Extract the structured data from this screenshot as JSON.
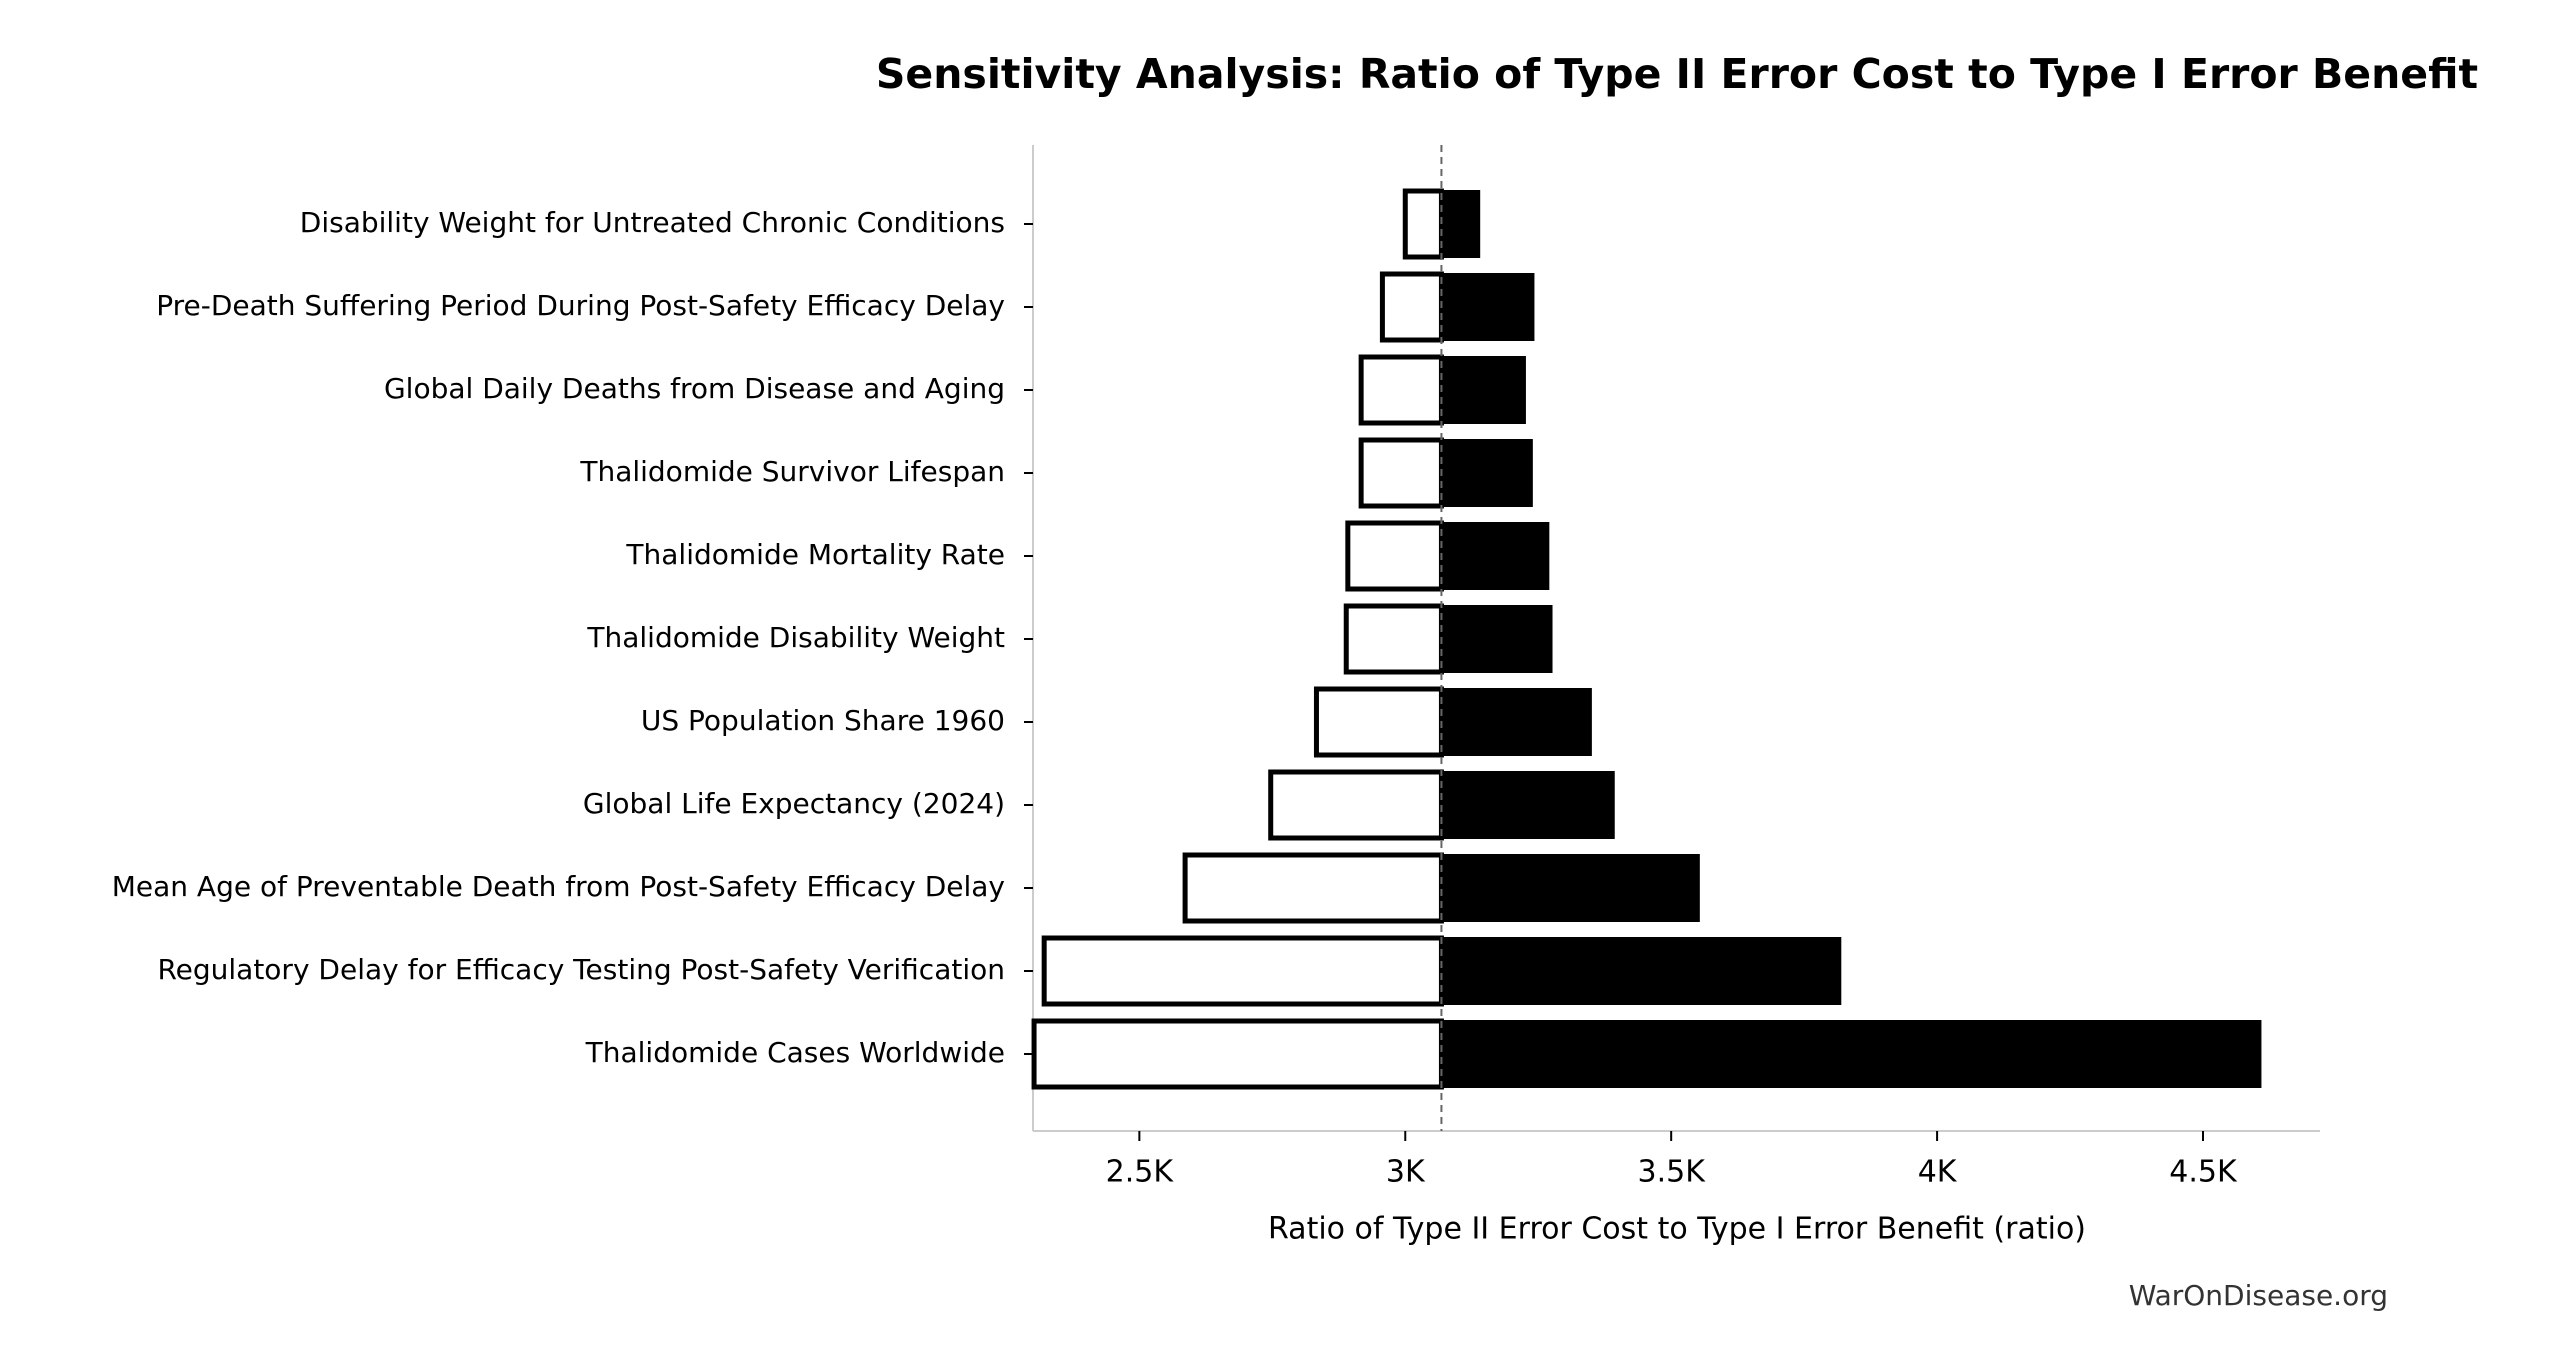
{
  "chart_data": {
    "type": "tornado",
    "title": "Sensitivity Analysis: Ratio of Type II Error Cost to Type I Error Benefit",
    "xlabel": "Ratio of Type II Error Cost to Type I Error Benefit (ratio)",
    "source": "WarOnDisease.org",
    "categories": [
      "Disability Weight for Untreated Chronic Conditions",
      "Pre-Death Suffering Period During Post-Safety Efficacy Delay",
      "Global Daily Deaths from Disease and Aging",
      "Thalidomide Survivor Lifespan",
      "Thalidomide Mortality Rate",
      "Thalidomide Disability Weight",
      "US Population Share 1960",
      "Global Life Expectancy (2024)",
      "Mean Age of Preventable Death from Post-Safety Efficacy Delay",
      "Regulatory Delay for Efficacy Testing Post-Safety Verification",
      "Thalidomide Cases Worldwide"
    ],
    "baseline": 3068,
    "lows": [
      3000,
      2957,
      2917,
      2917,
      2892,
      2889,
      2833,
      2747,
      2586,
      2321,
      2302
    ],
    "highs": [
      3139,
      3241,
      3225,
      3238,
      3269,
      3275,
      3349,
      3392,
      3552,
      3818,
      4608
    ],
    "low_color": "#ffffff",
    "high_color": "#000000",
    "xlim": [
      2300,
      4720
    ],
    "xticks": [
      {
        "value": 2500,
        "label": "2.5K"
      },
      {
        "value": 3000,
        "label": "3K"
      },
      {
        "value": 3500,
        "label": "3.5K"
      },
      {
        "value": 4000,
        "label": "4K"
      },
      {
        "value": 4500,
        "label": "4.5K"
      }
    ]
  }
}
